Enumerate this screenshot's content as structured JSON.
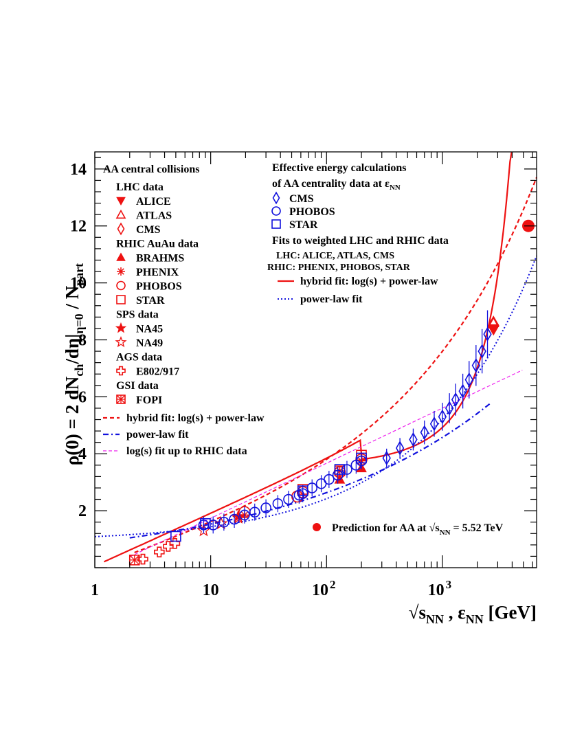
{
  "chart_data": {
    "type": "scatter",
    "x_scale": "log",
    "xlim": [
      1,
      6500
    ],
    "ylim": [
      0,
      14.6
    ],
    "x_ticks": [
      {
        "value": 1,
        "label": "1"
      },
      {
        "value": 10,
        "label": "10"
      },
      {
        "value": 100,
        "label": "10",
        "sup": "2"
      },
      {
        "value": 1000,
        "label": "10",
        "sup": "3"
      }
    ],
    "y_ticks": [
      2,
      4,
      6,
      8,
      10,
      12,
      14
    ],
    "xlabel": {
      "root": "√",
      "s": "s",
      "sub1": "NN",
      "mid": " , ε",
      "sub2": "NN",
      "unit": "  [GeV]"
    },
    "ylabel": {
      "a": "ρ(0) = 2 dN",
      "sub1": "ch",
      "b": "/dη|",
      "sub2": "η=0",
      "c": " / N",
      "sub3": "part"
    },
    "colors": {
      "red": "#ee1111",
      "blue": "#1111dd",
      "magenta": "#ee22ee"
    },
    "legend_left": {
      "header": "AA central collisions",
      "groups": [
        {
          "title": "LHC data",
          "items": [
            {
              "label": "ALICE",
              "marker": "triangle-down-filled"
            },
            {
              "label": "ATLAS",
              "marker": "triangle-up-open"
            },
            {
              "label": "CMS",
              "marker": "diamond-open"
            }
          ]
        },
        {
          "title": "RHIC AuAu data",
          "items": [
            {
              "label": "BRAHMS",
              "marker": "triangle-up-filled"
            },
            {
              "label": "PHENIX",
              "marker": "asterisk"
            },
            {
              "label": "PHOBOS",
              "marker": "circle-open"
            },
            {
              "label": "STAR",
              "marker": "square-open"
            }
          ]
        },
        {
          "title": "SPS data",
          "items": [
            {
              "label": "NA45",
              "marker": "star-filled"
            },
            {
              "label": "NA49",
              "marker": "star-open"
            }
          ]
        },
        {
          "title": "AGS data",
          "items": [
            {
              "label": "E802/917",
              "marker": "cross-open"
            }
          ]
        },
        {
          "title": "GSI data",
          "items": [
            {
              "label": "FOPI",
              "marker": "square-x"
            }
          ]
        }
      ],
      "lines": [
        {
          "label": "hybrid fit: log(s) + power-law",
          "style": "red-dashed"
        },
        {
          "label": "power-law fit",
          "style": "blue-dashdot"
        },
        {
          "label": "log(s) fit up to RHIC data",
          "style": "magenta-dashed"
        }
      ]
    },
    "legend_right": {
      "line1": "Effective energy calculations",
      "line2": "of AA centrality data at ε",
      "line2_sub": "NN",
      "items": [
        {
          "label": "CMS",
          "marker": "diamond-open"
        },
        {
          "label": "PHOBOS",
          "marker": "circle-open"
        },
        {
          "label": "STAR",
          "marker": "square-open"
        }
      ],
      "fits_title": "Fits to weighted LHC and RHIC data",
      "fits_lhc": "LHC: ALICE, ATLAS, CMS",
      "fits_rhic": "RHIC: PHENIX, PHOBOS, STAR",
      "lines": [
        {
          "label": "hybrid fit: log(s) + power-law",
          "style": "red-solid"
        },
        {
          "label": "power-law fit",
          "style": "blue-dotted"
        }
      ]
    },
    "prediction": {
      "text": "Prediction for AA at √s",
      "sub": "NN",
      "tail": " = 5.52 TeV",
      "x": 5520,
      "y": 12.0
    },
    "series": [
      {
        "name": "ALICE",
        "marker": "triangle-down-filled",
        "color": "red",
        "points": [
          [
            2760,
            8.4
          ]
        ]
      },
      {
        "name": "ATLAS",
        "marker": "triangle-up-open",
        "color": "red",
        "points": [
          [
            2760,
            8.6
          ]
        ]
      },
      {
        "name": "CMS",
        "marker": "diamond-open",
        "color": "red",
        "points": [
          [
            2760,
            8.5
          ]
        ]
      },
      {
        "name": "BRAHMS",
        "marker": "triangle-up-filled",
        "color": "red",
        "points": [
          [
            130,
            3.1
          ],
          [
            200,
            3.5
          ]
        ]
      },
      {
        "name": "PHENIX",
        "marker": "asterisk",
        "color": "red",
        "points": [
          [
            19.6,
            1.85
          ],
          [
            130,
            3.4
          ],
          [
            200,
            3.75
          ]
        ]
      },
      {
        "name": "PHOBOS",
        "marker": "circle-open",
        "color": "red",
        "points": [
          [
            19.6,
            1.95
          ],
          [
            56,
            2.5
          ],
          [
            62.4,
            2.65
          ],
          [
            130,
            3.35
          ],
          [
            200,
            3.8
          ]
        ]
      },
      {
        "name": "STAR",
        "marker": "square-open",
        "color": "red",
        "points": [
          [
            62.4,
            2.75
          ],
          [
            130,
            3.4
          ],
          [
            200,
            3.95
          ]
        ]
      },
      {
        "name": "NA45",
        "marker": "star-filled",
        "color": "red",
        "points": [
          [
            17.3,
            1.8
          ]
        ]
      },
      {
        "name": "NA49",
        "marker": "star-open",
        "color": "red",
        "points": [
          [
            8.7,
            1.3
          ],
          [
            12.3,
            1.55
          ],
          [
            17.3,
            1.75
          ]
        ]
      },
      {
        "name": "E802/917",
        "marker": "cross-open",
        "color": "red",
        "points": [
          [
            2.6,
            0.3
          ],
          [
            3.6,
            0.55
          ],
          [
            4.3,
            0.75
          ],
          [
            4.9,
            0.85
          ]
        ]
      },
      {
        "name": "FOPI",
        "marker": "square-x",
        "color": "red",
        "points": [
          [
            2.2,
            0.27
          ]
        ]
      },
      {
        "name": "CMS (effective energy)",
        "marker": "diamond-open",
        "color": "blue",
        "points": [
          [
            330,
            3.85
          ],
          [
            430,
            4.2
          ],
          [
            560,
            4.5
          ],
          [
            700,
            4.75
          ],
          [
            850,
            5.05
          ],
          [
            1000,
            5.3
          ],
          [
            1150,
            5.6
          ],
          [
            1300,
            5.9
          ],
          [
            1500,
            6.2
          ],
          [
            1700,
            6.6
          ],
          [
            1950,
            7.1
          ],
          [
            2200,
            7.6
          ],
          [
            2450,
            8.2
          ]
        ]
      },
      {
        "name": "PHOBOS (effective energy)",
        "marker": "circle-open",
        "color": "blue",
        "points": [
          [
            8.7,
            1.5
          ],
          [
            10.5,
            1.5
          ],
          [
            13,
            1.6
          ],
          [
            16,
            1.7
          ],
          [
            19.6,
            1.85
          ],
          [
            24,
            1.95
          ],
          [
            30,
            2.1
          ],
          [
            38,
            2.25
          ],
          [
            47,
            2.4
          ],
          [
            58,
            2.55
          ],
          [
            62.4,
            2.6
          ],
          [
            75,
            2.8
          ],
          [
            90,
            2.95
          ],
          [
            105,
            3.1
          ],
          [
            125,
            3.25
          ],
          [
            150,
            3.45
          ],
          [
            180,
            3.6
          ],
          [
            200,
            3.75
          ]
        ]
      },
      {
        "name": "STAR (effective energy)",
        "marker": "square-open",
        "color": "blue",
        "points": [
          [
            5,
            1.1
          ],
          [
            9,
            1.55
          ],
          [
            62.4,
            2.7
          ],
          [
            130,
            3.45
          ],
          [
            200,
            3.85
          ]
        ]
      }
    ],
    "curves": [
      {
        "name": "hybrid fit (red solid)",
        "style": "red-solid"
      },
      {
        "name": "hybrid fit (red dashed)",
        "style": "red-dashed"
      },
      {
        "name": "power-law fit (blue dash-dot)",
        "style": "blue-dashdot"
      },
      {
        "name": "power-law fit (blue dotted)",
        "style": "blue-dotted"
      },
      {
        "name": "log(s) fit (magenta dashed)",
        "style": "magenta-dashed"
      }
    ]
  }
}
